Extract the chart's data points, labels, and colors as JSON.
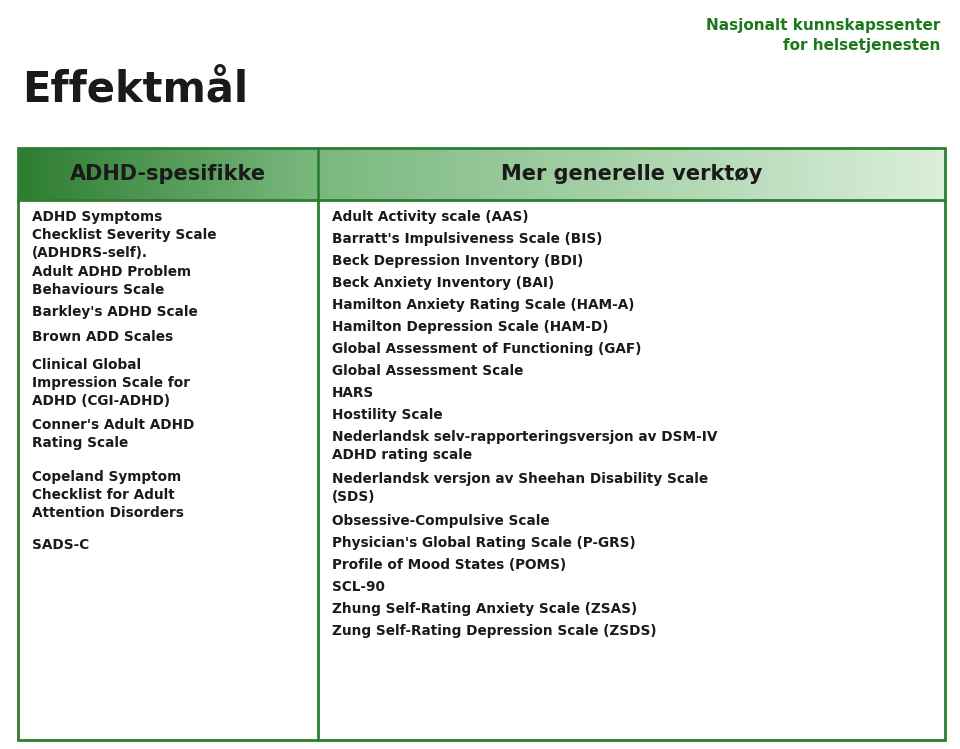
{
  "title": "Effektmål",
  "logo_line1": "Nasjonalt kunnskapssenter",
  "logo_line2": "for helsetjenesten",
  "logo_color": "#1a7a1a",
  "col1_header": "ADHD-spesifikke",
  "col2_header": "Mer generelle verktøy",
  "header_bg_left": "#2e7d32",
  "header_bg_right": "#d4e8d4",
  "table_border_color": "#2e7d32",
  "col1_items": [
    "ADHD Symptoms\nChecklist Severity Scale\n(ADHDRS-self).",
    "Adult ADHD Problem\nBehaviours Scale",
    "Barkley's ADHD Scale",
    "Brown ADD Scales",
    "Clinical Global\nImpression Scale for\nADHD (CGI-ADHD)",
    "Conner's Adult ADHD\nRating Scale",
    "Copeland Symptom\nChecklist for Adult\nAttention Disorders",
    "SADS-C"
  ],
  "col2_items": [
    "Adult Activity scale (AAS)",
    "Barratt's Impulsiveness Scale (BIS)",
    "Beck Depression Inventory (BDI)",
    "Beck Anxiety Inventory (BAI)",
    "Hamilton Anxiety Rating Scale (HAM-A)",
    "Hamilton Depression Scale (HAM-D)",
    "Global Assessment of Functioning (GAF)",
    "Global Assessment Scale",
    "HARS",
    "Hostility Scale",
    "Nederlandsk selv-rapporteringsversjon av DSM-IV\nADHD rating scale",
    "Nederlandsk versjon av Sheehan Disability Scale\n(SDS)",
    "Obsessive-Compulsive Scale",
    "Physician's Global Rating Scale (P-GRS)",
    "Profile of Mood States (POMS)",
    "SCL-90",
    "Zhung Self-Rating Anxiety Scale (ZSAS)",
    "Zung Self-Rating Depression Scale (ZSDS)"
  ],
  "text_color": "#1a1a1a",
  "bg_color": "#ffffff",
  "figsize": [
    9.6,
    7.49
  ],
  "dpi": 100
}
